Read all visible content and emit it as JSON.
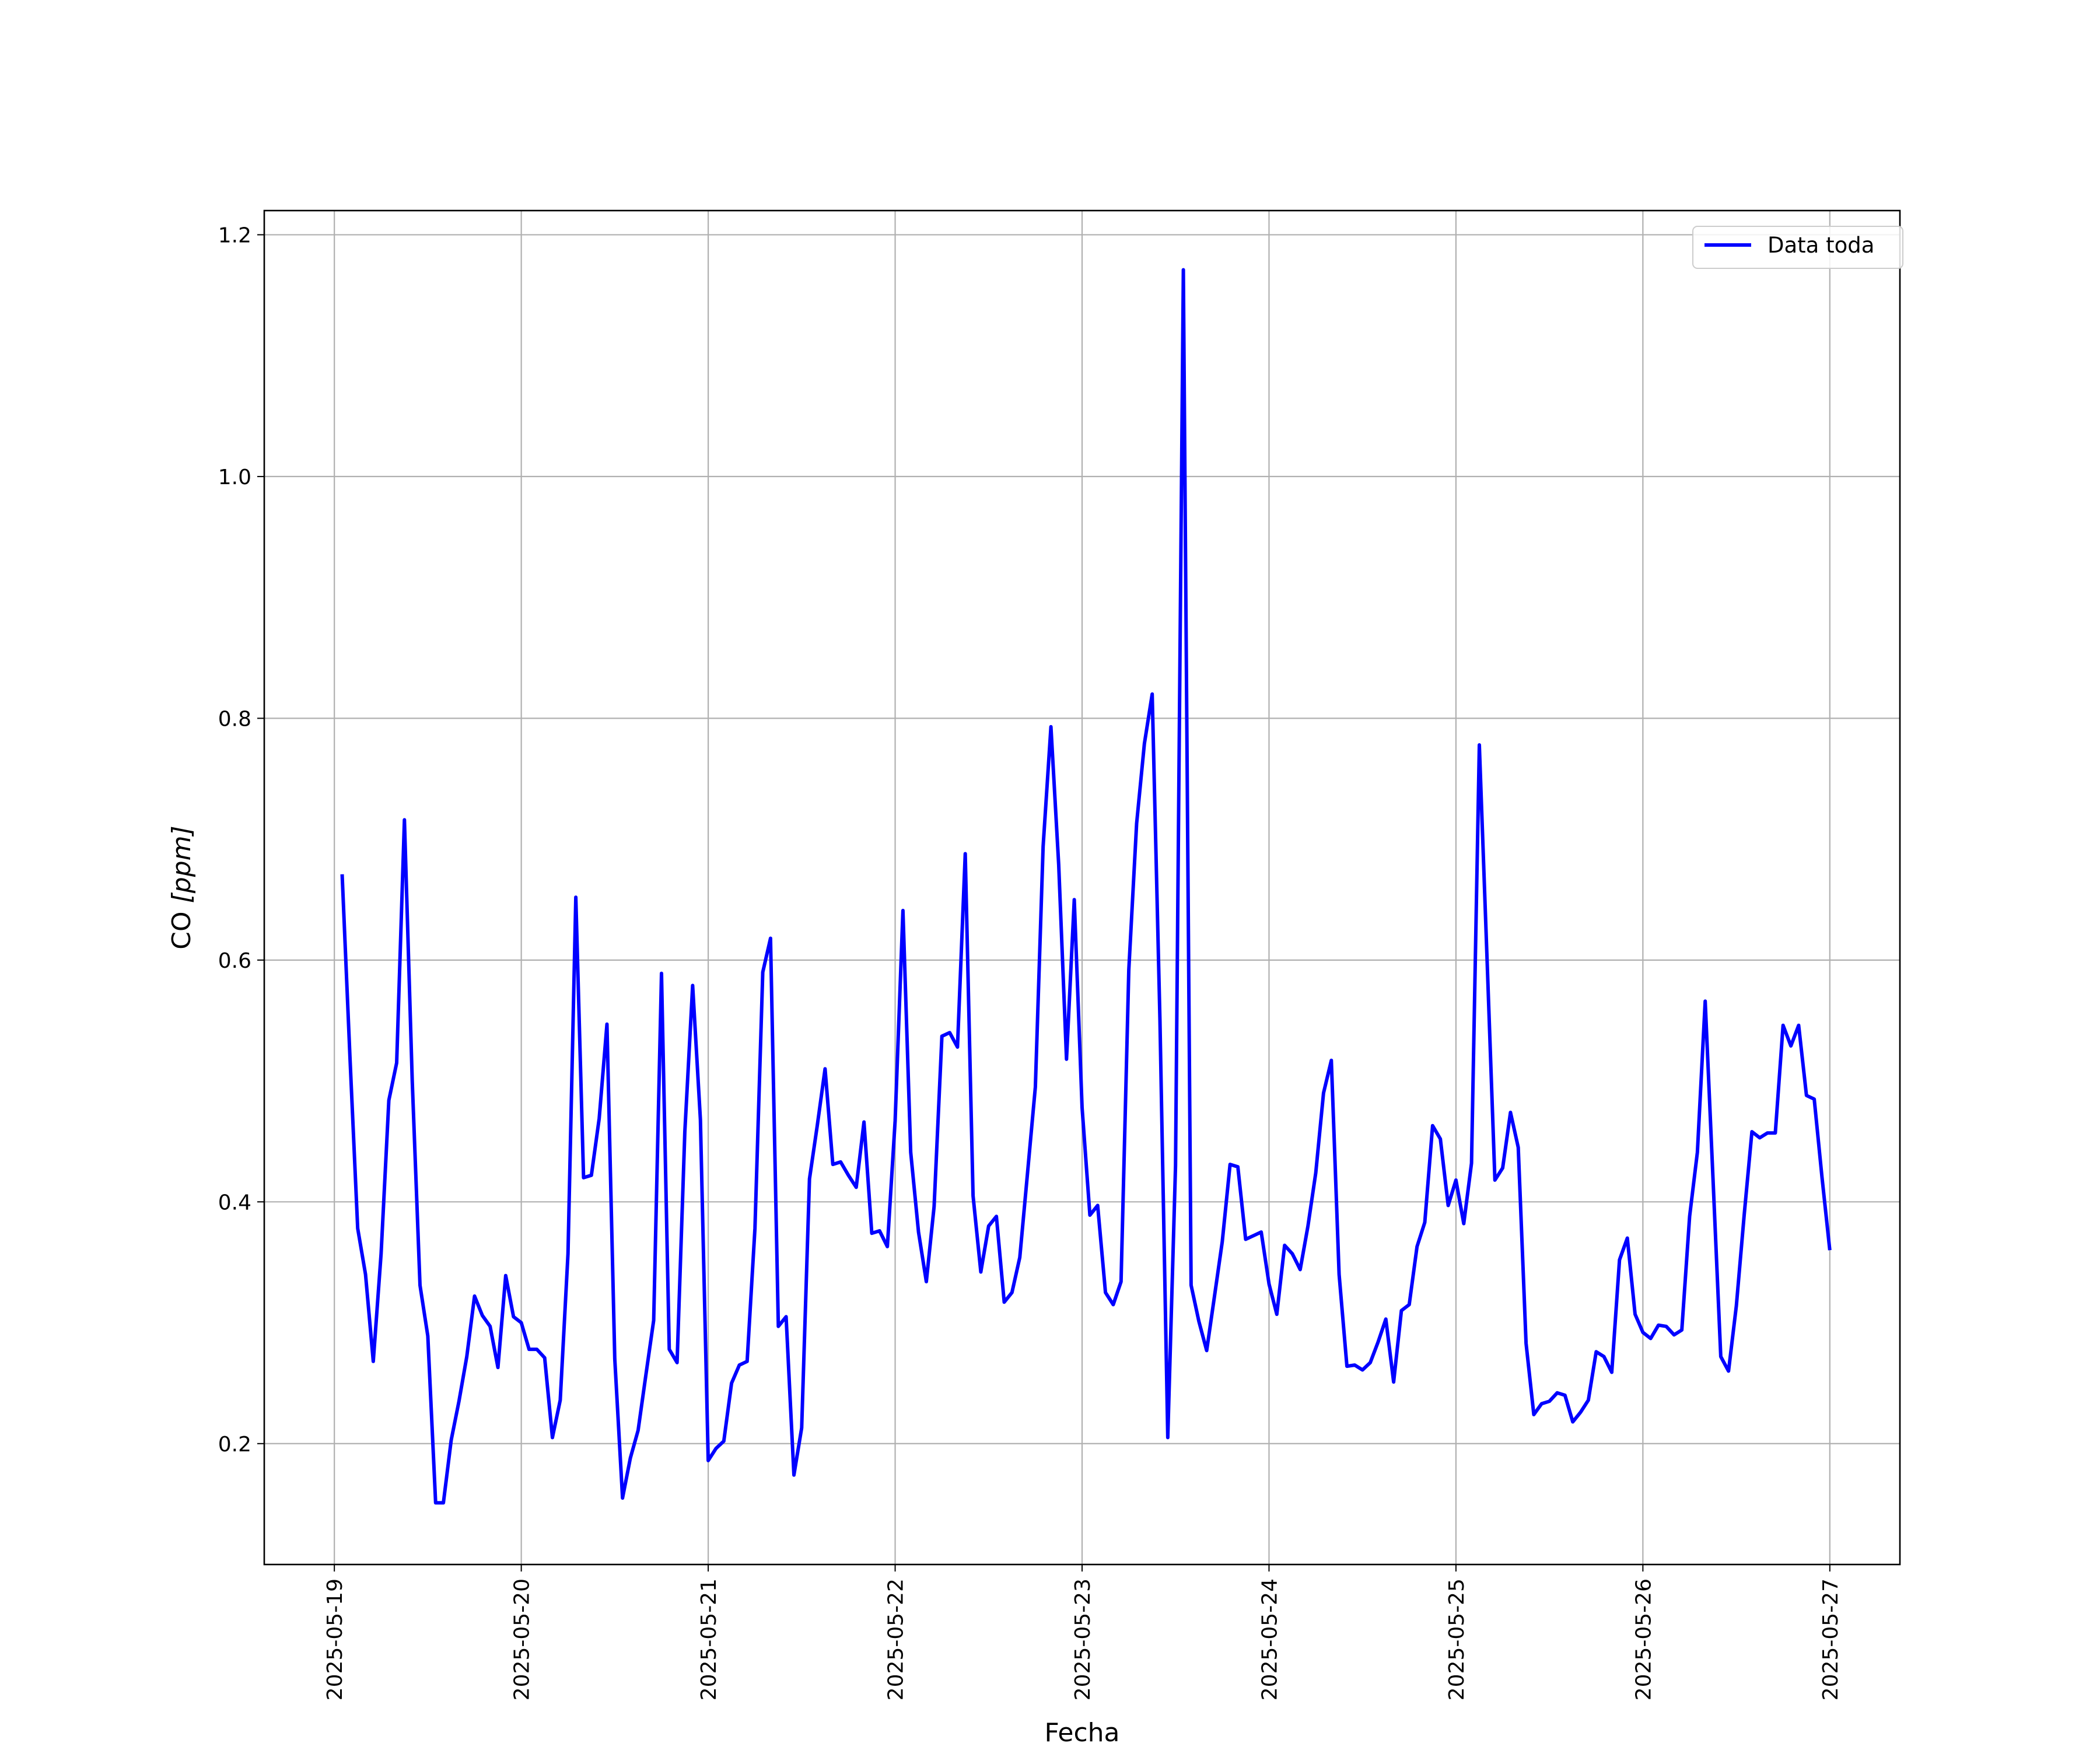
{
  "chart_data": {
    "type": "line",
    "xlabel": "Fecha",
    "ylabel": "CO [ppm]",
    "ylabel_parts": {
      "main": "CO ",
      "unit": "[ppm]"
    },
    "ylim": [
      0.1,
      1.22
    ],
    "xlim": [
      "2025-05-18 15:00",
      "2025-05-27 09:00"
    ],
    "yticks": [
      {
        "value": 0.2,
        "label": "0.2"
      },
      {
        "value": 0.4,
        "label": "0.4"
      },
      {
        "value": 0.6,
        "label": "0.6"
      },
      {
        "value": 0.8,
        "label": "0.8"
      },
      {
        "value": 1.0,
        "label": "1.0"
      },
      {
        "value": 1.2,
        "label": "1.2"
      }
    ],
    "xticks": [
      {
        "value": "2025-05-19",
        "label": "2025-05-19"
      },
      {
        "value": "2025-05-20",
        "label": "2025-05-20"
      },
      {
        "value": "2025-05-21",
        "label": "2025-05-21"
      },
      {
        "value": "2025-05-22",
        "label": "2025-05-22"
      },
      {
        "value": "2025-05-23",
        "label": "2025-05-23"
      },
      {
        "value": "2025-05-24",
        "label": "2025-05-24"
      },
      {
        "value": "2025-05-25",
        "label": "2025-05-25"
      },
      {
        "value": "2025-05-26",
        "label": "2025-05-26"
      },
      {
        "value": "2025-05-27",
        "label": "2025-05-27"
      }
    ],
    "grid": true,
    "legend_position": "top-right",
    "series": [
      {
        "name": "Data toda",
        "color": "#0000ff",
        "points": [
          [
            "2025-05-19 01:00",
            0.671
          ],
          [
            "2025-05-19 02:00",
            0.52
          ],
          [
            "2025-05-19 03:00",
            0.378
          ],
          [
            "2025-05-19 04:00",
            0.34
          ],
          [
            "2025-05-19 05:00",
            0.268
          ],
          [
            "2025-05-19 06:00",
            0.357
          ],
          [
            "2025-05-19 07:00",
            0.484
          ],
          [
            "2025-05-19 08:00",
            0.515
          ],
          [
            "2025-05-19 09:00",
            0.716
          ],
          [
            "2025-05-19 10:00",
            0.5
          ],
          [
            "2025-05-19 11:00",
            0.331
          ],
          [
            "2025-05-19 12:00",
            0.289
          ],
          [
            "2025-05-19 13:00",
            0.151
          ],
          [
            "2025-05-19 14:00",
            0.151
          ],
          [
            "2025-05-19 15:00",
            0.203
          ],
          [
            "2025-05-19 16:00",
            0.235
          ],
          [
            "2025-05-19 17:00",
            0.272
          ],
          [
            "2025-05-19 18:00",
            0.322
          ],
          [
            "2025-05-19 19:00",
            0.306
          ],
          [
            "2025-05-19 20:00",
            0.297
          ],
          [
            "2025-05-19 21:00",
            0.263
          ],
          [
            "2025-05-19 22:00",
            0.339
          ],
          [
            "2025-05-19 23:00",
            0.305
          ],
          [
            "2025-05-20 00:00",
            0.3
          ],
          [
            "2025-05-20 01:00",
            0.278
          ],
          [
            "2025-05-20 02:00",
            0.278
          ],
          [
            "2025-05-20 03:00",
            0.271
          ],
          [
            "2025-05-20 04:00",
            0.205
          ],
          [
            "2025-05-20 05:00",
            0.236
          ],
          [
            "2025-05-20 06:00",
            0.357
          ],
          [
            "2025-05-20 07:00",
            0.652
          ],
          [
            "2025-05-20 08:00",
            0.42
          ],
          [
            "2025-05-20 09:00",
            0.422
          ],
          [
            "2025-05-20 10:00",
            0.469
          ],
          [
            "2025-05-20 11:00",
            0.547
          ],
          [
            "2025-05-20 12:00",
            0.27
          ],
          [
            "2025-05-20 13:00",
            0.155
          ],
          [
            "2025-05-20 14:00",
            0.188
          ],
          [
            "2025-05-20 15:00",
            0.211
          ],
          [
            "2025-05-20 16:00",
            0.257
          ],
          [
            "2025-05-20 17:00",
            0.302
          ],
          [
            "2025-05-20 18:00",
            0.589
          ],
          [
            "2025-05-20 19:00",
            0.278
          ],
          [
            "2025-05-20 20:00",
            0.267
          ],
          [
            "2025-05-20 21:00",
            0.458
          ],
          [
            "2025-05-20 22:00",
            0.579
          ],
          [
            "2025-05-20 23:00",
            0.468
          ],
          [
            "2025-05-21 00:00",
            0.186
          ],
          [
            "2025-05-21 01:00",
            0.196
          ],
          [
            "2025-05-21 02:00",
            0.202
          ],
          [
            "2025-05-21 03:00",
            0.25
          ],
          [
            "2025-05-21 04:00",
            0.265
          ],
          [
            "2025-05-21 05:00",
            0.268
          ],
          [
            "2025-05-21 06:00",
            0.378
          ],
          [
            "2025-05-21 07:00",
            0.59
          ],
          [
            "2025-05-21 08:00",
            0.618
          ],
          [
            "2025-05-21 09:00",
            0.297
          ],
          [
            "2025-05-21 10:00",
            0.305
          ],
          [
            "2025-05-21 11:00",
            0.174
          ],
          [
            "2025-05-21 12:00",
            0.213
          ],
          [
            "2025-05-21 13:00",
            0.419
          ],
          [
            "2025-05-21 14:00",
            0.463
          ],
          [
            "2025-05-21 15:00",
            0.51
          ],
          [
            "2025-05-21 16:00",
            0.431
          ],
          [
            "2025-05-21 17:00",
            0.433
          ],
          [
            "2025-05-21 18:00",
            0.422
          ],
          [
            "2025-05-21 19:00",
            0.412
          ],
          [
            "2025-05-21 20:00",
            0.466
          ],
          [
            "2025-05-21 21:00",
            0.374
          ],
          [
            "2025-05-21 22:00",
            0.376
          ],
          [
            "2025-05-21 23:00",
            0.363
          ],
          [
            "2025-05-22 00:00",
            0.467
          ],
          [
            "2025-05-22 01:00",
            0.641
          ],
          [
            "2025-05-22 02:00",
            0.441
          ],
          [
            "2025-05-22 03:00",
            0.375
          ],
          [
            "2025-05-22 04:00",
            0.334
          ],
          [
            "2025-05-22 05:00",
            0.396
          ],
          [
            "2025-05-22 06:00",
            0.537
          ],
          [
            "2025-05-22 07:00",
            0.54
          ],
          [
            "2025-05-22 08:00",
            0.528
          ],
          [
            "2025-05-22 09:00",
            0.688
          ],
          [
            "2025-05-22 10:00",
            0.405
          ],
          [
            "2025-05-22 11:00",
            0.342
          ],
          [
            "2025-05-22 12:00",
            0.38
          ],
          [
            "2025-05-22 13:00",
            0.388
          ],
          [
            "2025-05-22 14:00",
            0.317
          ],
          [
            "2025-05-22 15:00",
            0.325
          ],
          [
            "2025-05-22 16:00",
            0.354
          ],
          [
            "2025-05-22 17:00",
            0.424
          ],
          [
            "2025-05-22 18:00",
            0.495
          ],
          [
            "2025-05-22 19:00",
            0.694
          ],
          [
            "2025-05-22 20:00",
            0.793
          ],
          [
            "2025-05-22 21:00",
            0.679
          ],
          [
            "2025-05-22 22:00",
            0.518
          ],
          [
            "2025-05-22 23:00",
            0.65
          ],
          [
            "2025-05-23 00:00",
            0.478
          ],
          [
            "2025-05-23 01:00",
            0.389
          ],
          [
            "2025-05-23 02:00",
            0.397
          ],
          [
            "2025-05-23 03:00",
            0.325
          ],
          [
            "2025-05-23 04:00",
            0.315
          ],
          [
            "2025-05-23 05:00",
            0.334
          ],
          [
            "2025-05-23 06:00",
            0.592
          ],
          [
            "2025-05-23 07:00",
            0.713
          ],
          [
            "2025-05-23 08:00",
            0.779
          ],
          [
            "2025-05-23 09:00",
            0.82
          ],
          [
            "2025-05-23 10:00",
            0.55
          ],
          [
            "2025-05-23 11:00",
            0.205
          ],
          [
            "2025-05-23 12:00",
            0.43
          ],
          [
            "2025-05-23 13:00",
            1.171
          ],
          [
            "2025-05-23 14:00",
            0.331
          ],
          [
            "2025-05-23 15:00",
            0.301
          ],
          [
            "2025-05-23 16:00",
            0.277
          ],
          [
            "2025-05-23 17:00",
            0.322
          ],
          [
            "2025-05-23 18:00",
            0.367
          ],
          [
            "2025-05-23 19:00",
            0.431
          ],
          [
            "2025-05-23 20:00",
            0.429
          ],
          [
            "2025-05-23 21:00",
            0.369
          ],
          [
            "2025-05-23 22:00",
            0.372
          ],
          [
            "2025-05-23 23:00",
            0.375
          ],
          [
            "2025-05-24 00:00",
            0.332
          ],
          [
            "2025-05-24 01:00",
            0.307
          ],
          [
            "2025-05-24 02:00",
            0.364
          ],
          [
            "2025-05-24 03:00",
            0.357
          ],
          [
            "2025-05-24 04:00",
            0.344
          ],
          [
            "2025-05-24 05:00",
            0.38
          ],
          [
            "2025-05-24 06:00",
            0.424
          ],
          [
            "2025-05-24 07:00",
            0.49
          ],
          [
            "2025-05-24 08:00",
            0.517
          ],
          [
            "2025-05-24 09:00",
            0.34
          ],
          [
            "2025-05-24 10:00",
            0.264
          ],
          [
            "2025-05-24 11:00",
            0.265
          ],
          [
            "2025-05-24 12:00",
            0.261
          ],
          [
            "2025-05-24 13:00",
            0.267
          ],
          [
            "2025-05-24 14:00",
            0.284
          ],
          [
            "2025-05-24 15:00",
            0.303
          ],
          [
            "2025-05-24 16:00",
            0.251
          ],
          [
            "2025-05-24 17:00",
            0.31
          ],
          [
            "2025-05-24 18:00",
            0.315
          ],
          [
            "2025-05-24 19:00",
            0.363
          ],
          [
            "2025-05-24 20:00",
            0.383
          ],
          [
            "2025-05-24 21:00",
            0.463
          ],
          [
            "2025-05-24 22:00",
            0.452
          ],
          [
            "2025-05-24 23:00",
            0.397
          ],
          [
            "2025-05-25 00:00",
            0.418
          ],
          [
            "2025-05-25 01:00",
            0.382
          ],
          [
            "2025-05-25 02:00",
            0.432
          ],
          [
            "2025-05-25 03:00",
            0.778
          ],
          [
            "2025-05-25 04:00",
            0.6
          ],
          [
            "2025-05-25 05:00",
            0.418
          ],
          [
            "2025-05-25 06:00",
            0.428
          ],
          [
            "2025-05-25 07:00",
            0.474
          ],
          [
            "2025-05-25 08:00",
            0.445
          ],
          [
            "2025-05-25 09:00",
            0.283
          ],
          [
            "2025-05-25 10:00",
            0.224
          ],
          [
            "2025-05-25 11:00",
            0.233
          ],
          [
            "2025-05-25 12:00",
            0.235
          ],
          [
            "2025-05-25 13:00",
            0.242
          ],
          [
            "2025-05-25 14:00",
            0.24
          ],
          [
            "2025-05-25 15:00",
            0.218
          ],
          [
            "2025-05-25 16:00",
            0.226
          ],
          [
            "2025-05-25 17:00",
            0.236
          ],
          [
            "2025-05-25 18:00",
            0.276
          ],
          [
            "2025-05-25 19:00",
            0.272
          ],
          [
            "2025-05-25 20:00",
            0.259
          ],
          [
            "2025-05-25 21:00",
            0.352
          ],
          [
            "2025-05-25 22:00",
            0.37
          ],
          [
            "2025-05-25 23:00",
            0.307
          ],
          [
            "2025-05-26 00:00",
            0.292
          ],
          [
            "2025-05-26 01:00",
            0.287
          ],
          [
            "2025-05-26 02:00",
            0.298
          ],
          [
            "2025-05-26 03:00",
            0.297
          ],
          [
            "2025-05-26 04:00",
            0.29
          ],
          [
            "2025-05-26 05:00",
            0.294
          ],
          [
            "2025-05-26 06:00",
            0.388
          ],
          [
            "2025-05-26 07:00",
            0.441
          ],
          [
            "2025-05-26 08:00",
            0.566
          ],
          [
            "2025-05-26 09:00",
            0.42
          ],
          [
            "2025-05-26 10:00",
            0.272
          ],
          [
            "2025-05-26 11:00",
            0.26
          ],
          [
            "2025-05-26 12:00",
            0.314
          ],
          [
            "2025-05-26 13:00",
            0.389
          ],
          [
            "2025-05-26 14:00",
            0.458
          ],
          [
            "2025-05-26 15:00",
            0.453
          ],
          [
            "2025-05-26 16:00",
            0.457
          ],
          [
            "2025-05-26 17:00",
            0.457
          ],
          [
            "2025-05-26 18:00",
            0.546
          ],
          [
            "2025-05-26 19:00",
            0.529
          ],
          [
            "2025-05-26 20:00",
            0.546
          ],
          [
            "2025-05-26 21:00",
            0.488
          ],
          [
            "2025-05-26 22:00",
            0.485
          ],
          [
            "2025-05-26 23:00",
            0.42
          ],
          [
            "2025-05-27 00:00",
            0.36
          ]
        ]
      }
    ]
  }
}
